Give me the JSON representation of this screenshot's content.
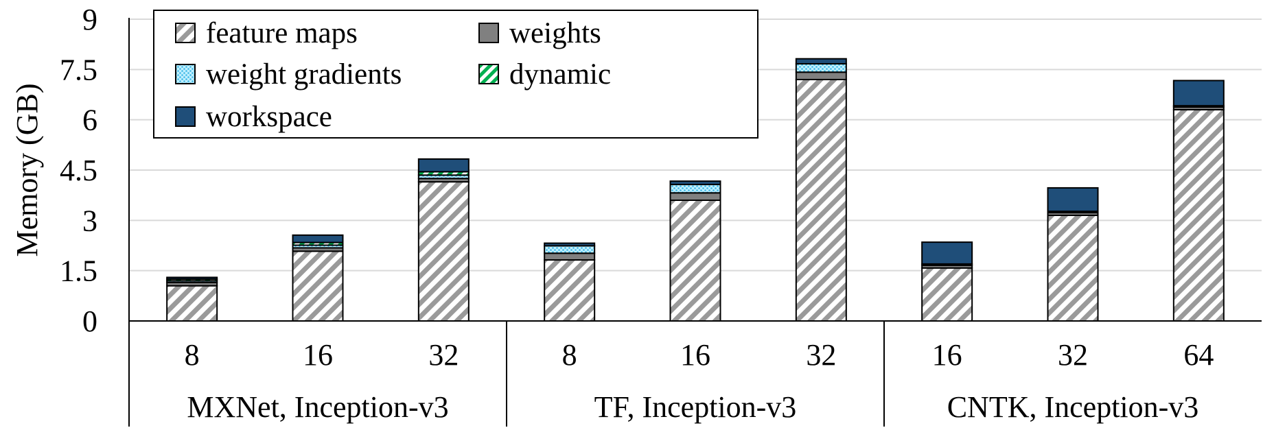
{
  "chart_data": {
    "type": "bar",
    "stacked": true,
    "ylabel": "Memory (GB)",
    "ylim": [
      0,
      9
    ],
    "yticks": [
      "0",
      "1.5",
      "3",
      "4.5",
      "6",
      "7.5",
      "9"
    ],
    "grid": true,
    "legend_position": "top-left",
    "groups": [
      {
        "label": "MXNet, Inception-v3",
        "categories": [
          "8",
          "16",
          "32"
        ]
      },
      {
        "label": "TF, Inception-v3",
        "categories": [
          "8",
          "16",
          "32"
        ]
      },
      {
        "label": "CNTK, Inception-v3",
        "categories": [
          "16",
          "32",
          "64"
        ]
      }
    ],
    "series": [
      {
        "name": "feature maps",
        "pattern": "diagonal-hatch",
        "color": "#a6a6a6",
        "values": [
          1.05,
          2.08,
          4.15,
          1.82,
          3.6,
          7.2,
          1.58,
          3.15,
          6.3
        ]
      },
      {
        "name": "weights",
        "pattern": "solid",
        "color": "#808080",
        "values": [
          0.1,
          0.1,
          0.1,
          0.2,
          0.22,
          0.22,
          0.08,
          0.08,
          0.08
        ]
      },
      {
        "name": "weight gradients",
        "pattern": "dots",
        "color": "#8fdcf5",
        "values": [
          0.05,
          0.08,
          0.1,
          0.22,
          0.25,
          0.25,
          0.04,
          0.04,
          0.04
        ]
      },
      {
        "name": "dynamic",
        "pattern": "diagonal-stripe",
        "color": "#00b050",
        "values": [
          0.05,
          0.08,
          0.1,
          0.0,
          0.0,
          0.0,
          0.0,
          0.0,
          0.0
        ]
      },
      {
        "name": "workspace",
        "pattern": "solid",
        "color": "#1f4e79",
        "values": [
          0.05,
          0.22,
          0.38,
          0.08,
          0.1,
          0.15,
          0.65,
          0.7,
          0.75
        ]
      }
    ]
  }
}
